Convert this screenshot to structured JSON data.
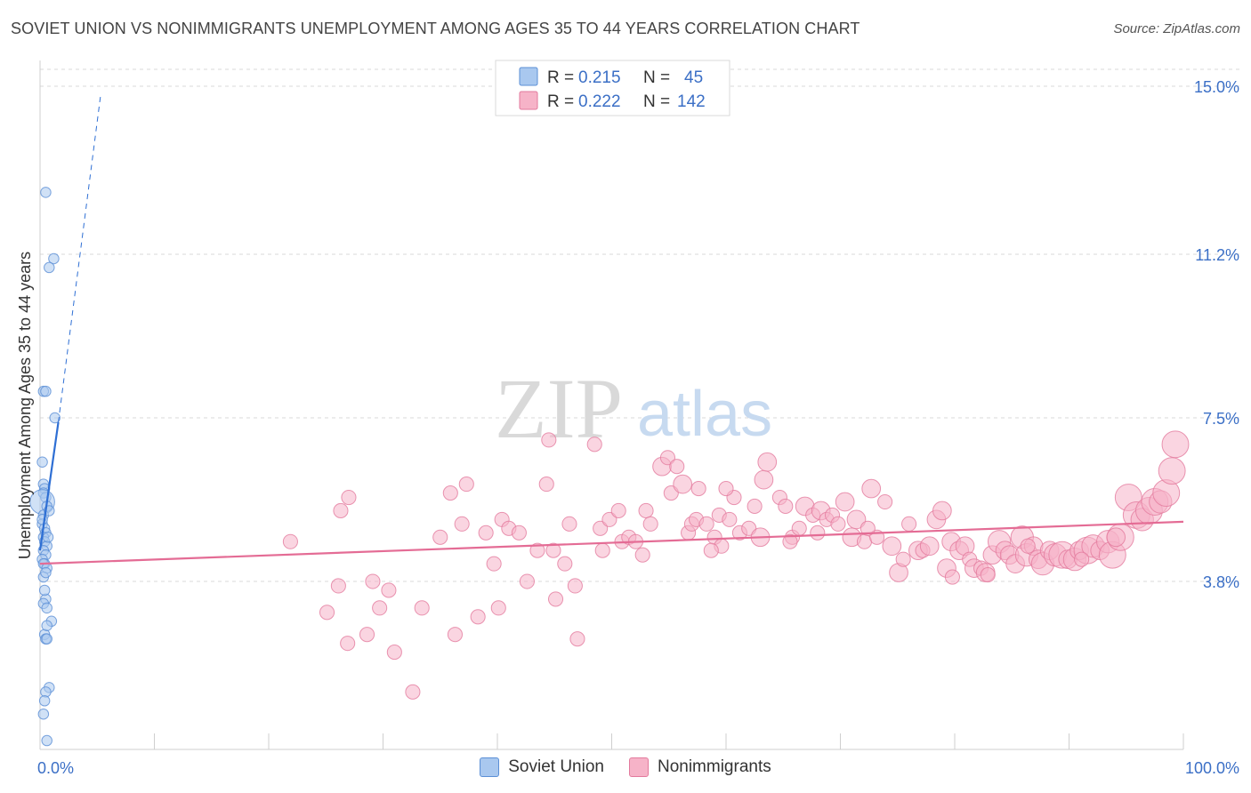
{
  "header": {
    "title": "SOVIET UNION VS NONIMMIGRANTS UNEMPLOYMENT AMONG AGES 35 TO 44 YEARS CORRELATION CHART",
    "source": "Source: ZipAtlas.com"
  },
  "watermark": {
    "zip": "ZIP",
    "atlas": "atlas"
  },
  "legend": {
    "series": [
      {
        "r_label": "R =",
        "r_value": "0.215",
        "n_label": "N =",
        "n_value": "45"
      },
      {
        "r_label": "R =",
        "r_value": "0.222",
        "n_label": "N =",
        "n_value": "142"
      }
    ]
  },
  "colors": {
    "blue_fill": "#a9c8ef",
    "blue_stroke": "#5b8fd6",
    "blue_line": "#2e6fd4",
    "pink_fill": "#f6b3c8",
    "pink_stroke": "#e37a9d",
    "pink_line": "#e46c95",
    "value_text": "#3b6fc6",
    "grid": "#d8d8d8"
  },
  "chart_data": {
    "type": "scatter",
    "title": "SOVIET UNION VS NONIMMIGRANTS UNEMPLOYMENT AMONG AGES 35 TO 44 YEARS CORRELATION CHART",
    "xlabel": "",
    "ylabel": "Unemployment Among Ages 35 to 44 years",
    "xlim": [
      0,
      100
    ],
    "ylim": [
      0,
      15
    ],
    "x_tick_labels": [
      "0.0%",
      "100.0%"
    ],
    "y_ticks": [
      3.8,
      7.5,
      11.2,
      15.0
    ],
    "y_tick_labels": [
      "3.8%",
      "7.5%",
      "11.2%",
      "15.0%"
    ],
    "grid": true,
    "legend_position": "top-center",
    "series": [
      {
        "name": "Soviet Union",
        "r": 0.215,
        "n": 45,
        "trend": {
          "x0": 0,
          "y0": 4.5,
          "x1": 1.6,
          "y1": 7.4,
          "dash_to_x": 5.3,
          "dash_to_y": 14.8
        },
        "points": [
          [
            0.5,
            12.6,
            5
          ],
          [
            1.2,
            11.1,
            5
          ],
          [
            0.8,
            10.9,
            5
          ],
          [
            0.3,
            8.1,
            5
          ],
          [
            0.5,
            8.1,
            5
          ],
          [
            1.3,
            7.5,
            5
          ],
          [
            0.2,
            6.5,
            5
          ],
          [
            0.3,
            6.0,
            5
          ],
          [
            0.4,
            5.9,
            5
          ],
          [
            0.3,
            5.8,
            5
          ],
          [
            0.5,
            5.7,
            5
          ],
          [
            0.2,
            5.6,
            12
          ],
          [
            0.6,
            5.5,
            5
          ],
          [
            0.3,
            5.3,
            5
          ],
          [
            0.2,
            5.1,
            5
          ],
          [
            0.4,
            5.0,
            5
          ],
          [
            0.5,
            4.9,
            5
          ],
          [
            0.3,
            4.8,
            5
          ],
          [
            0.4,
            4.7,
            5
          ],
          [
            0.6,
            4.6,
            5
          ],
          [
            0.3,
            4.5,
            5
          ],
          [
            0.5,
            4.4,
            5
          ],
          [
            0.2,
            4.3,
            5
          ],
          [
            0.4,
            4.2,
            5
          ],
          [
            0.3,
            4.2,
            5
          ],
          [
            0.6,
            4.1,
            5
          ],
          [
            0.3,
            3.9,
            5
          ],
          [
            0.5,
            3.4,
            5
          ],
          [
            0.3,
            3.3,
            5
          ],
          [
            0.6,
            3.2,
            5
          ],
          [
            1.0,
            2.9,
            5
          ],
          [
            0.4,
            2.6,
            5
          ],
          [
            0.5,
            2.5,
            5
          ],
          [
            0.6,
            2.5,
            5
          ],
          [
            0.8,
            1.4,
            5
          ],
          [
            0.5,
            1.3,
            5
          ],
          [
            0.4,
            1.1,
            5
          ],
          [
            0.3,
            0.8,
            5
          ],
          [
            0.6,
            0.2,
            5
          ],
          [
            0.5,
            4.0,
            5
          ],
          [
            0.7,
            4.8,
            5
          ],
          [
            0.2,
            5.2,
            5
          ],
          [
            0.8,
            5.4,
            5
          ],
          [
            0.4,
            3.6,
            5
          ],
          [
            0.6,
            2.8,
            5
          ]
        ]
      },
      {
        "name": "Nonimmigrants",
        "r": 0.222,
        "n": 142,
        "trend": {
          "x0": 0,
          "y0": 4.2,
          "x1": 100,
          "y1": 5.15
        },
        "points": [
          [
            21.9,
            4.7,
            7
          ],
          [
            26.3,
            5.4,
            7
          ],
          [
            26.1,
            3.7,
            7
          ],
          [
            25.1,
            3.1,
            7
          ],
          [
            27.0,
            5.7,
            7
          ],
          [
            26.9,
            2.4,
            7
          ],
          [
            28.6,
            2.6,
            7
          ],
          [
            29.1,
            3.8,
            7
          ],
          [
            29.7,
            3.2,
            7
          ],
          [
            30.5,
            3.6,
            7
          ],
          [
            31.0,
            2.2,
            7
          ],
          [
            32.6,
            1.3,
            7
          ],
          [
            33.4,
            3.2,
            7
          ],
          [
            35.0,
            4.8,
            7
          ],
          [
            35.9,
            5.8,
            7
          ],
          [
            36.3,
            2.6,
            7
          ],
          [
            36.9,
            5.1,
            7
          ],
          [
            37.3,
            6.0,
            7
          ],
          [
            38.3,
            3.0,
            7
          ],
          [
            39.0,
            4.9,
            7
          ],
          [
            39.7,
            4.2,
            7
          ],
          [
            40.1,
            3.2,
            7
          ],
          [
            40.4,
            5.2,
            7
          ],
          [
            41.0,
            5.0,
            7
          ],
          [
            41.9,
            4.9,
            7
          ],
          [
            42.6,
            3.8,
            7
          ],
          [
            43.5,
            4.5,
            7
          ],
          [
            44.3,
            6.0,
            7
          ],
          [
            44.5,
            7.0,
            7
          ],
          [
            44.9,
            4.5,
            7
          ],
          [
            45.1,
            3.4,
            7
          ],
          [
            45.9,
            4.2,
            7
          ],
          [
            46.3,
            5.1,
            7
          ],
          [
            46.8,
            3.7,
            7
          ],
          [
            47.0,
            2.5,
            7
          ],
          [
            48.5,
            6.9,
            7
          ],
          [
            49.0,
            5.0,
            7
          ],
          [
            49.2,
            4.5,
            7
          ],
          [
            49.8,
            5.2,
            7
          ],
          [
            50.6,
            5.4,
            7
          ],
          [
            50.9,
            4.7,
            7
          ],
          [
            51.5,
            4.8,
            7
          ],
          [
            52.1,
            4.7,
            7
          ],
          [
            52.7,
            4.4,
            7
          ],
          [
            53.0,
            5.4,
            7
          ],
          [
            53.4,
            5.1,
            7
          ],
          [
            54.4,
            6.4,
            9
          ],
          [
            54.9,
            6.6,
            7
          ],
          [
            55.2,
            5.8,
            7
          ],
          [
            55.7,
            6.4,
            7
          ],
          [
            56.2,
            6.0,
            9
          ],
          [
            56.7,
            4.9,
            7
          ],
          [
            57.0,
            5.1,
            7
          ],
          [
            57.4,
            5.2,
            7
          ],
          [
            57.6,
            5.9,
            7
          ],
          [
            58.3,
            5.1,
            7
          ],
          [
            59.0,
            4.8,
            7
          ],
          [
            59.4,
            5.3,
            7
          ],
          [
            59.6,
            4.6,
            7
          ],
          [
            60.3,
            5.2,
            7
          ],
          [
            60.7,
            5.7,
            7
          ],
          [
            61.2,
            4.9,
            7
          ],
          [
            62.0,
            5.0,
            7
          ],
          [
            62.5,
            5.5,
            7
          ],
          [
            63.0,
            4.8,
            9
          ],
          [
            63.3,
            6.1,
            9
          ],
          [
            63.6,
            6.5,
            9
          ],
          [
            64.7,
            5.7,
            7
          ],
          [
            65.2,
            5.5,
            7
          ],
          [
            65.8,
            4.8,
            7
          ],
          [
            66.4,
            5.0,
            7
          ],
          [
            66.9,
            5.5,
            9
          ],
          [
            67.6,
            5.3,
            7
          ],
          [
            68.3,
            5.4,
            9
          ],
          [
            68.8,
            5.2,
            7
          ],
          [
            69.3,
            5.3,
            7
          ],
          [
            69.8,
            5.1,
            7
          ],
          [
            70.4,
            5.6,
            9
          ],
          [
            71.0,
            4.8,
            9
          ],
          [
            71.4,
            5.2,
            9
          ],
          [
            72.1,
            4.7,
            7
          ],
          [
            72.7,
            5.9,
            9
          ],
          [
            73.2,
            4.8,
            7
          ],
          [
            73.9,
            5.6,
            7
          ],
          [
            74.5,
            4.6,
            9
          ],
          [
            75.1,
            4.0,
            9
          ],
          [
            75.5,
            4.3,
            7
          ],
          [
            76.0,
            5.1,
            7
          ],
          [
            76.8,
            4.5,
            9
          ],
          [
            77.2,
            4.5,
            7
          ],
          [
            77.8,
            4.6,
            9
          ],
          [
            78.4,
            5.2,
            9
          ],
          [
            78.9,
            5.4,
            9
          ],
          [
            79.3,
            4.1,
            9
          ],
          [
            79.7,
            4.7,
            9
          ],
          [
            80.4,
            4.5,
            9
          ],
          [
            80.9,
            4.6,
            9
          ],
          [
            81.3,
            4.3,
            7
          ],
          [
            81.7,
            4.1,
            9
          ],
          [
            82.3,
            4.1,
            7
          ],
          [
            82.7,
            4.0,
            9
          ],
          [
            83.3,
            4.4,
            9
          ],
          [
            83.9,
            4.7,
            11
          ],
          [
            84.4,
            4.5,
            9
          ],
          [
            84.8,
            4.4,
            9
          ],
          [
            85.3,
            4.2,
            9
          ],
          [
            85.9,
            4.8,
            11
          ],
          [
            86.3,
            4.4,
            11
          ],
          [
            86.9,
            4.6,
            9
          ],
          [
            87.3,
            4.3,
            9
          ],
          [
            87.7,
            4.2,
            11
          ],
          [
            88.3,
            4.5,
            9
          ],
          [
            88.8,
            4.4,
            11
          ],
          [
            89.4,
            4.4,
            13
          ],
          [
            89.9,
            4.3,
            9
          ],
          [
            90.5,
            4.3,
            11
          ],
          [
            90.9,
            4.5,
            9
          ],
          [
            91.6,
            4.5,
            13
          ],
          [
            92.1,
            4.6,
            11
          ],
          [
            92.7,
            4.5,
            9
          ],
          [
            93.4,
            4.7,
            11
          ],
          [
            93.8,
            4.4,
            13
          ],
          [
            94.5,
            4.8,
            13
          ],
          [
            95.2,
            5.7,
            13
          ],
          [
            95.9,
            5.3,
            13
          ],
          [
            96.4,
            5.2,
            11
          ],
          [
            97.0,
            5.4,
            13
          ],
          [
            97.5,
            5.6,
            13
          ],
          [
            98.0,
            5.6,
            11
          ],
          [
            98.5,
            5.8,
            13
          ],
          [
            99.0,
            6.3,
            13
          ],
          [
            99.3,
            6.9,
            13
          ],
          [
            79.8,
            3.9,
            7
          ],
          [
            82.9,
            3.95,
            7
          ],
          [
            86.4,
            4.6,
            7
          ],
          [
            91.1,
            4.3,
            7
          ],
          [
            94.1,
            4.8,
            9
          ],
          [
            58.7,
            4.5,
            7
          ],
          [
            65.6,
            4.7,
            7
          ],
          [
            68.0,
            4.9,
            7
          ],
          [
            72.4,
            5.0,
            7
          ],
          [
            60.0,
            5.9,
            7
          ]
        ]
      }
    ]
  }
}
